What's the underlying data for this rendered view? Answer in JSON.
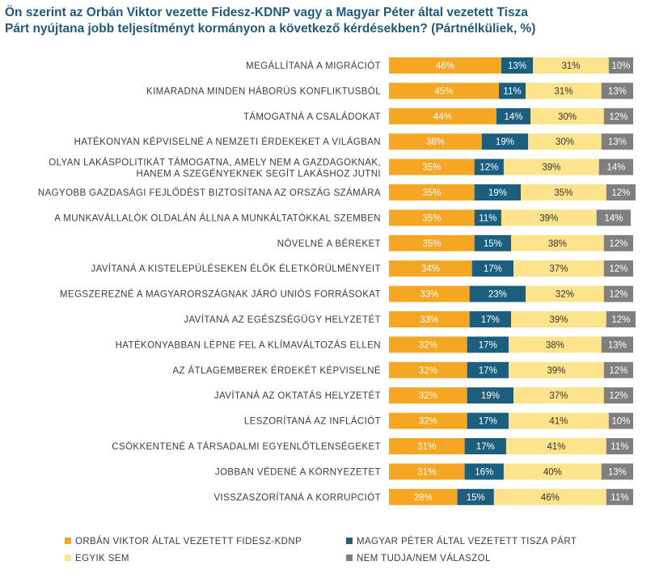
{
  "title_lines": [
    "Ön szerint az Orbán Viktor vezette Fidesz-KDNP vagy a Magyar Péter által vezetett Tisza",
    "Párt nyújtana jobb teljesítményt kormányon a következő kérdésekben? (Pártnélküliek, %)"
  ],
  "colors": {
    "fidesz": "#f5a623",
    "tisza": "#1b5e7e",
    "neither": "#fde38b",
    "dontknow": "#7f7f7f"
  },
  "chart_data": {
    "type": "bar",
    "orientation": "horizontal",
    "stacked": true,
    "percent_suffix": "%",
    "categories": [
      [
        "MEGÁLLÍTANÁ A MIGRÁCIÓT"
      ],
      [
        "KIMARADNA MINDEN HÁBORÚS KONFLIKTUSBÓL"
      ],
      [
        "TÁMOGATNÁ A CSALÁDOKAT"
      ],
      [
        "HATÉKONYAN KÉPVISELNÉ A NEMZETI ÉRDEKEKET A VILÁGBAN"
      ],
      [
        "OLYAN LAKÁSPOLITIKÁT TÁMOGATNA, AMELY NEM A GAZDAGOKNAK,",
        "HANEM A SZEGÉNYEKNEK SEGÍT LAKÁSHOZ JUTNI"
      ],
      [
        "NAGYOBB GAZDASÁGI FEJLŐDÉST BIZTOSÍTANA AZ ORSZÁG SZÁMÁRA"
      ],
      [
        "A MUNKAVÁLLALÓK OLDALÁN ÁLLNA A MUNKÁLTATÓKKAL SZEMBEN"
      ],
      [
        "NÖVELNÉ A BÉREKET"
      ],
      [
        "JAVÍTANÁ A KISTELEPÜLÉSEKEN ÉLŐK ÉLETKÖRÜLMÉNYEIT"
      ],
      [
        "MEGSZEREZNÉ A MAGYARORSZÁGNAK JÁRÓ UNIÓS FORRÁSOKAT"
      ],
      [
        "JAVÍTANÁ AZ EGÉSZSÉGÜGY HELYZETÉT"
      ],
      [
        "HATÉKONYABBAN LÉPNE FEL A KLÍMAVÁLTOZÁS ELLEN"
      ],
      [
        "AZ ÁTLAGEMBEREK ÉRDEKÉT KÉPVISELNÉ"
      ],
      [
        "JAVÍTANÁ AZ OKTATÁS HELYZETÉT"
      ],
      [
        "LESZORÍTANÁ AZ INFLÁCIÓT"
      ],
      [
        "CSÖKKENTENÉ A TÁRSADALMI EGYENLŐTLENSÉGEKET"
      ],
      [
        "JOBBAN VÉDENÉ A KÖRNYEZETET"
      ],
      [
        "VISSZASZORÍTANÁ A KORRUPCIÓT"
      ]
    ],
    "series": [
      {
        "name": "ORBÁN VIKTOR ÁLTAL VEZETETT FIDESZ-KDNP",
        "color_key": "fidesz",
        "label_color": "#ffffff",
        "values": [
          46,
          45,
          44,
          38,
          35,
          35,
          35,
          35,
          34,
          33,
          33,
          32,
          32,
          32,
          32,
          31,
          31,
          28
        ]
      },
      {
        "name": "MAGYAR PÉTER ÁLTAL VEZETETT TISZA PÁRT",
        "color_key": "tisza",
        "label_color": "#ffffff",
        "values": [
          13,
          11,
          14,
          19,
          12,
          19,
          11,
          15,
          17,
          23,
          17,
          17,
          17,
          19,
          17,
          17,
          16,
          15
        ]
      },
      {
        "name": "EGYIK SEM",
        "color_key": "neither",
        "label_color": "#333333",
        "values": [
          31,
          31,
          30,
          30,
          39,
          35,
          39,
          38,
          37,
          32,
          39,
          38,
          39,
          37,
          41,
          41,
          40,
          46
        ]
      },
      {
        "name": "NEM TUDJA/NEM VÁLASZOL",
        "color_key": "dontknow",
        "label_color": "#ffffff",
        "values": [
          10,
          13,
          12,
          13,
          14,
          12,
          14,
          12,
          12,
          12,
          12,
          13,
          12,
          12,
          10,
          11,
          13,
          11
        ]
      }
    ],
    "xlim": [
      0,
      100
    ],
    "legend_position": "bottom"
  }
}
